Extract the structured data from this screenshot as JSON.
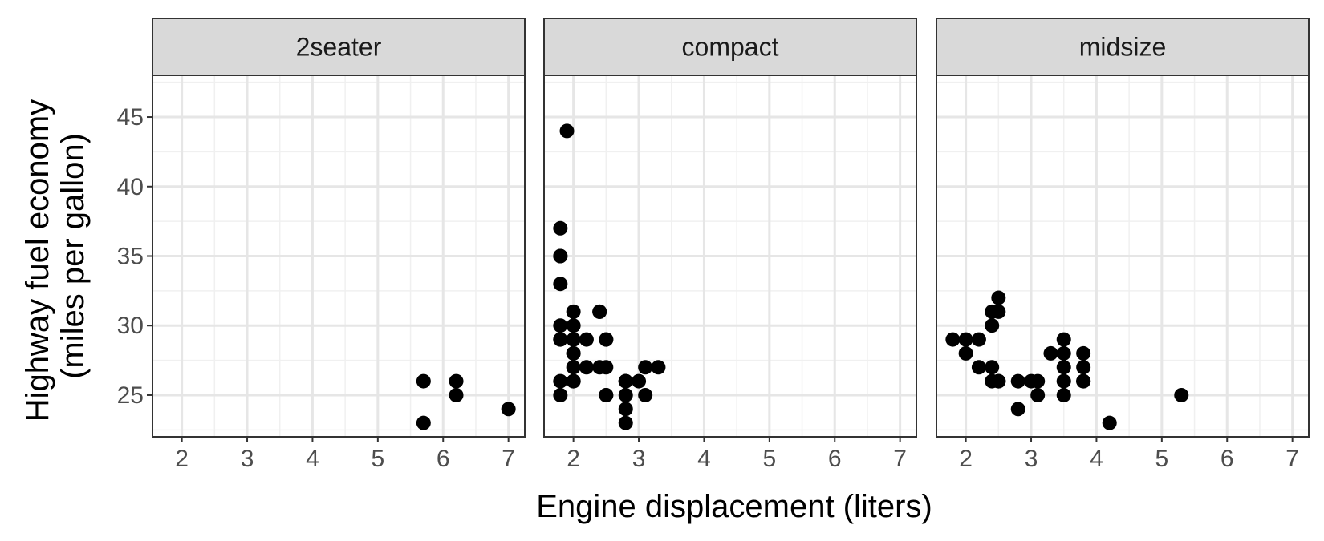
{
  "chart_data": {
    "type": "scatter",
    "facet_by": "class",
    "xlabel": "Engine displacement (liters)",
    "ylabel_lines": [
      "Highway fuel economy",
      "(miles per gallon)"
    ],
    "xlim": [
      1.55,
      7.25
    ],
    "ylim": [
      22,
      48
    ],
    "x_ticks": [
      2,
      3,
      4,
      5,
      6,
      7
    ],
    "y_ticks": [
      25,
      30,
      35,
      40,
      45
    ],
    "grid": true,
    "point_color": "#000000",
    "strip_fill": "#d9d9d9",
    "panels": [
      {
        "label": "2seater",
        "points": [
          [
            5.7,
            26
          ],
          [
            5.7,
            23
          ],
          [
            6.2,
            26
          ],
          [
            6.2,
            25
          ],
          [
            7.0,
            24
          ]
        ]
      },
      {
        "label": "compact",
        "points": [
          [
            1.8,
            29
          ],
          [
            1.8,
            29
          ],
          [
            2.0,
            31
          ],
          [
            2.0,
            30
          ],
          [
            2.8,
            26
          ],
          [
            2.8,
            26
          ],
          [
            3.1,
            27
          ],
          [
            1.8,
            26
          ],
          [
            1.8,
            25
          ],
          [
            2.0,
            28
          ],
          [
            2.0,
            28
          ],
          [
            2.8,
            26
          ],
          [
            2.8,
            25
          ],
          [
            3.1,
            25
          ],
          [
            2.2,
            29
          ],
          [
            2.2,
            27
          ],
          [
            2.4,
            31
          ],
          [
            2.4,
            31
          ],
          [
            3.0,
            26
          ],
          [
            3.3,
            27
          ],
          [
            1.8,
            30
          ],
          [
            1.8,
            33
          ],
          [
            1.8,
            35
          ],
          [
            1.8,
            37
          ],
          [
            1.8,
            35
          ],
          [
            1.9,
            44
          ],
          [
            2.0,
            29
          ],
          [
            2.0,
            26
          ],
          [
            2.0,
            29
          ],
          [
            2.0,
            29
          ],
          [
            2.0,
            26
          ],
          [
            2.0,
            27
          ],
          [
            2.5,
            29
          ],
          [
            2.5,
            29
          ],
          [
            2.5,
            25
          ],
          [
            2.5,
            25
          ],
          [
            2.5,
            27
          ],
          [
            2.8,
            23
          ],
          [
            2.8,
            24
          ],
          [
            2.4,
            27
          ]
        ]
      },
      {
        "label": "midsize",
        "points": [
          [
            2.8,
            24
          ],
          [
            3.1,
            25
          ],
          [
            4.2,
            23
          ],
          [
            3.8,
            27
          ],
          [
            3.8,
            28
          ],
          [
            3.8,
            26
          ],
          [
            3.8,
            26
          ],
          [
            3.3,
            28
          ],
          [
            3.5,
            29
          ],
          [
            3.5,
            26
          ],
          [
            3.5,
            27
          ],
          [
            3.5,
            25
          ],
          [
            3.5,
            28
          ],
          [
            2.5,
            32
          ],
          [
            2.5,
            31
          ],
          [
            2.5,
            26
          ],
          [
            2.4,
            31
          ],
          [
            2.4,
            30
          ],
          [
            2.4,
            27
          ],
          [
            2.4,
            26
          ],
          [
            1.8,
            29
          ],
          [
            2.0,
            29
          ],
          [
            2.0,
            28
          ],
          [
            2.2,
            29
          ],
          [
            2.2,
            27
          ],
          [
            2.8,
            26
          ],
          [
            3.0,
            26
          ],
          [
            3.1,
            26
          ],
          [
            5.3,
            25
          ],
          [
            2.5,
            26
          ]
        ]
      }
    ]
  }
}
